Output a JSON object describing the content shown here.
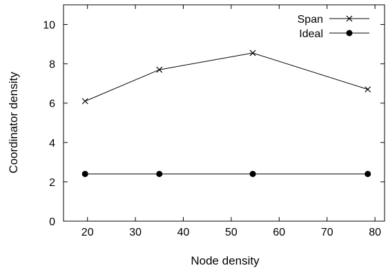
{
  "chart_data": {
    "type": "line",
    "title": "",
    "xlabel": "Node density",
    "ylabel": "Coordinator density",
    "xlim": [
      15,
      82
    ],
    "ylim": [
      0,
      11
    ],
    "xticks": [
      20,
      30,
      40,
      50,
      60,
      70,
      80
    ],
    "yticks": [
      0,
      2,
      4,
      6,
      8,
      10
    ],
    "grid": false,
    "legend_position": "top-right",
    "series": [
      {
        "name": "Span",
        "marker": "x",
        "color": "#000000",
        "x": [
          19.5,
          35,
          54.5,
          78.5
        ],
        "y": [
          6.1,
          7.7,
          8.55,
          6.7
        ]
      },
      {
        "name": "Ideal",
        "marker": "filled-circle",
        "color": "#000000",
        "x": [
          19.5,
          35,
          54.5,
          78.5
        ],
        "y": [
          2.4,
          2.4,
          2.4,
          2.4
        ]
      }
    ]
  }
}
